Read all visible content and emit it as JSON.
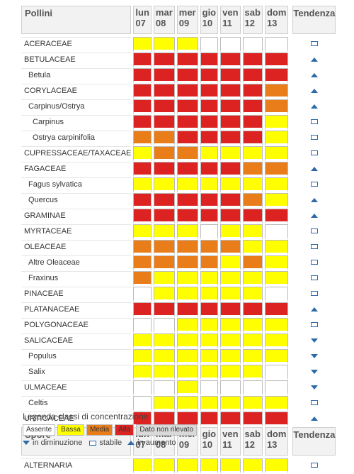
{
  "pollen_header": {
    "title": "Pollini",
    "trend_label": "Tendenza",
    "days": [
      {
        "name": "lun",
        "num": "07"
      },
      {
        "name": "mar",
        "num": "08"
      },
      {
        "name": "mer",
        "num": "09"
      },
      {
        "name": "gio",
        "num": "10"
      },
      {
        "name": "ven",
        "num": "11"
      },
      {
        "name": "sab",
        "num": "12"
      },
      {
        "name": "dom",
        "num": "13"
      }
    ]
  },
  "pollen_rows": [
    {
      "label": "ACERACEAE",
      "level": 0,
      "values": [
        1,
        1,
        1,
        0,
        0,
        0,
        0
      ],
      "trend": "stable"
    },
    {
      "label": "BETULACEAE",
      "level": 0,
      "values": [
        3,
        3,
        3,
        3,
        3,
        3,
        3
      ],
      "trend": "up"
    },
    {
      "label": "Betula",
      "level": 1,
      "values": [
        3,
        3,
        3,
        3,
        3,
        3,
        3
      ],
      "trend": "up"
    },
    {
      "label": "CORYLACEAE",
      "level": 0,
      "values": [
        3,
        3,
        3,
        3,
        3,
        3,
        2
      ],
      "trend": "up"
    },
    {
      "label": "Carpinus/Ostrya",
      "level": 1,
      "values": [
        3,
        3,
        3,
        3,
        3,
        3,
        2
      ],
      "trend": "up"
    },
    {
      "label": "Carpinus",
      "level": 2,
      "values": [
        3,
        3,
        3,
        3,
        3,
        3,
        1
      ],
      "trend": "stable"
    },
    {
      "label": "Ostrya carpinifolia",
      "level": 2,
      "values": [
        2,
        2,
        3,
        3,
        3,
        3,
        1
      ],
      "trend": "stable"
    },
    {
      "label": "CUPRESSACEAE/TAXACEAE",
      "level": 0,
      "values": [
        1,
        2,
        2,
        1,
        1,
        1,
        1
      ],
      "trend": "stable"
    },
    {
      "label": "FAGACEAE",
      "level": 0,
      "values": [
        3,
        3,
        3,
        3,
        3,
        2,
        2
      ],
      "trend": "up"
    },
    {
      "label": "Fagus sylvatica",
      "level": 1,
      "values": [
        1,
        1,
        1,
        1,
        1,
        1,
        1
      ],
      "trend": "stable"
    },
    {
      "label": "Quercus",
      "level": 1,
      "values": [
        3,
        3,
        3,
        3,
        3,
        2,
        1
      ],
      "trend": "up"
    },
    {
      "label": "GRAMINAE",
      "level": 0,
      "values": [
        3,
        3,
        3,
        3,
        3,
        3,
        3
      ],
      "trend": "up"
    },
    {
      "label": "MYRTACEAE",
      "level": 0,
      "values": [
        1,
        1,
        1,
        0,
        1,
        1,
        0
      ],
      "trend": "stable"
    },
    {
      "label": "OLEACEAE",
      "level": 0,
      "values": [
        2,
        2,
        2,
        2,
        2,
        1,
        1
      ],
      "trend": "stable"
    },
    {
      "label": "Altre Oleaceae",
      "level": 1,
      "values": [
        2,
        2,
        2,
        2,
        1,
        2,
        1
      ],
      "trend": "stable"
    },
    {
      "label": "Fraxinus",
      "level": 1,
      "values": [
        2,
        1,
        1,
        1,
        1,
        1,
        1
      ],
      "trend": "stable"
    },
    {
      "label": "PINACEAE",
      "level": 0,
      "values": [
        0,
        1,
        1,
        1,
        1,
        1,
        0
      ],
      "trend": "stable"
    },
    {
      "label": "PLATANACEAE",
      "level": 0,
      "values": [
        3,
        3,
        3,
        3,
        3,
        3,
        3
      ],
      "trend": "up"
    },
    {
      "label": "POLYGONACEAE",
      "level": 0,
      "values": [
        0,
        0,
        1,
        1,
        1,
        1,
        1
      ],
      "trend": "stable"
    },
    {
      "label": "SALICACEAE",
      "level": 0,
      "values": [
        1,
        1,
        1,
        1,
        1,
        1,
        1
      ],
      "trend": "down"
    },
    {
      "label": "Populus",
      "level": 1,
      "values": [
        1,
        1,
        1,
        1,
        1,
        1,
        1
      ],
      "trend": "down"
    },
    {
      "label": "Salix",
      "level": 1,
      "values": [
        1,
        1,
        1,
        1,
        1,
        1,
        0
      ],
      "trend": "down"
    },
    {
      "label": "ULMACEAE",
      "level": 0,
      "values": [
        0,
        0,
        1,
        0,
        0,
        0,
        0
      ],
      "trend": "down"
    },
    {
      "label": "Celtis",
      "level": 1,
      "values": [
        0,
        1,
        1,
        1,
        1,
        1,
        1
      ],
      "trend": "stable"
    },
    {
      "label": "URTICACEAE",
      "level": 0,
      "values": [
        3,
        3,
        3,
        3,
        3,
        3,
        3
      ],
      "trend": "up"
    }
  ],
  "spore_header": {
    "title": "Spore",
    "trend_label": "Tendenza"
  },
  "spore_rows": [
    {
      "label": "ALTERNARIA",
      "level": 0,
      "values": [
        1,
        1,
        1,
        1,
        1,
        1,
        1
      ],
      "trend": "stable"
    }
  ],
  "level_colors": {
    "0": "#ffffff",
    "1": "#ffff00",
    "2": "#e87d1a",
    "3": "#dd2222"
  },
  "legend": {
    "title": "Legenda classi di concentrazione",
    "classes": [
      {
        "label": "Assente",
        "color": "#ffffff",
        "text_color": "#333333"
      },
      {
        "label": "Bassa",
        "color": "#ffff00",
        "text_color": "#333333"
      },
      {
        "label": "Media",
        "color": "#e87d1a",
        "text_color": "#333333"
      },
      {
        "label": "Alta",
        "color": "#dd2222",
        "text_color": "#333333"
      },
      {
        "label": "Dato non rilevato",
        "color": "#d9d9d9",
        "text_color": "#333333"
      }
    ],
    "down_label": "in diminuzione",
    "stable_label": "stabile",
    "up_label": "in aumento"
  }
}
